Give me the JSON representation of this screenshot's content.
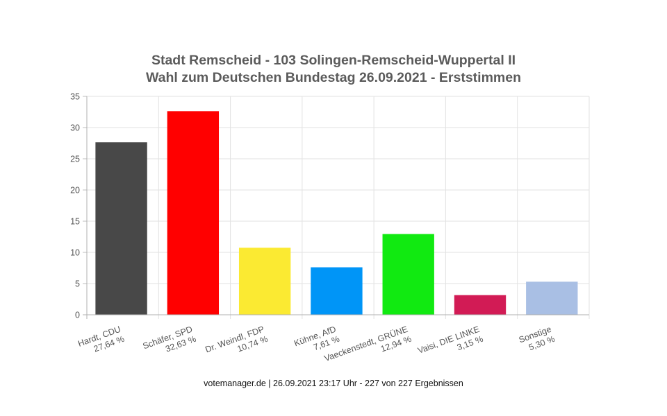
{
  "chart_data": {
    "type": "bar",
    "title": "Stadt Remscheid - 103 Solingen-Remscheid-Wuppertal II",
    "subtitle": "Wahl zum Deutschen Bundestag 26.09.2021  - Erststimmen",
    "xlabel": "",
    "ylabel": "",
    "ylim": [
      0,
      35
    ],
    "yticks": [
      "0",
      "5",
      "10",
      "15",
      "20",
      "25",
      "30",
      "35"
    ],
    "grid": true,
    "categories": [
      {
        "name": "Hardt, CDU",
        "pct_label": "27,64 %"
      },
      {
        "name": "Schäfer, SPD",
        "pct_label": "32,63 %"
      },
      {
        "name": "Dr. Weindl, FDP",
        "pct_label": "10,74 %"
      },
      {
        "name": "Kühne, AfD",
        "pct_label": "7,61 %"
      },
      {
        "name": "Vaeckenstedt, GRÜNE",
        "pct_label": "12,94 %"
      },
      {
        "name": "Vaisi, DIE LINKE",
        "pct_label": "3,15 %"
      },
      {
        "name": "Sonstige",
        "pct_label": "5,30 %"
      }
    ],
    "values": [
      27.64,
      32.63,
      10.74,
      7.61,
      12.94,
      3.15,
      5.3
    ],
    "colors": [
      "#484848",
      "#ff0000",
      "#fbea32",
      "#0095f7",
      "#11ea11",
      "#d21b55",
      "#a9bfe4"
    ]
  },
  "footer": "votemanager.de | 26.09.2021 23:17 Uhr - 227 von 227 Ergebnissen"
}
